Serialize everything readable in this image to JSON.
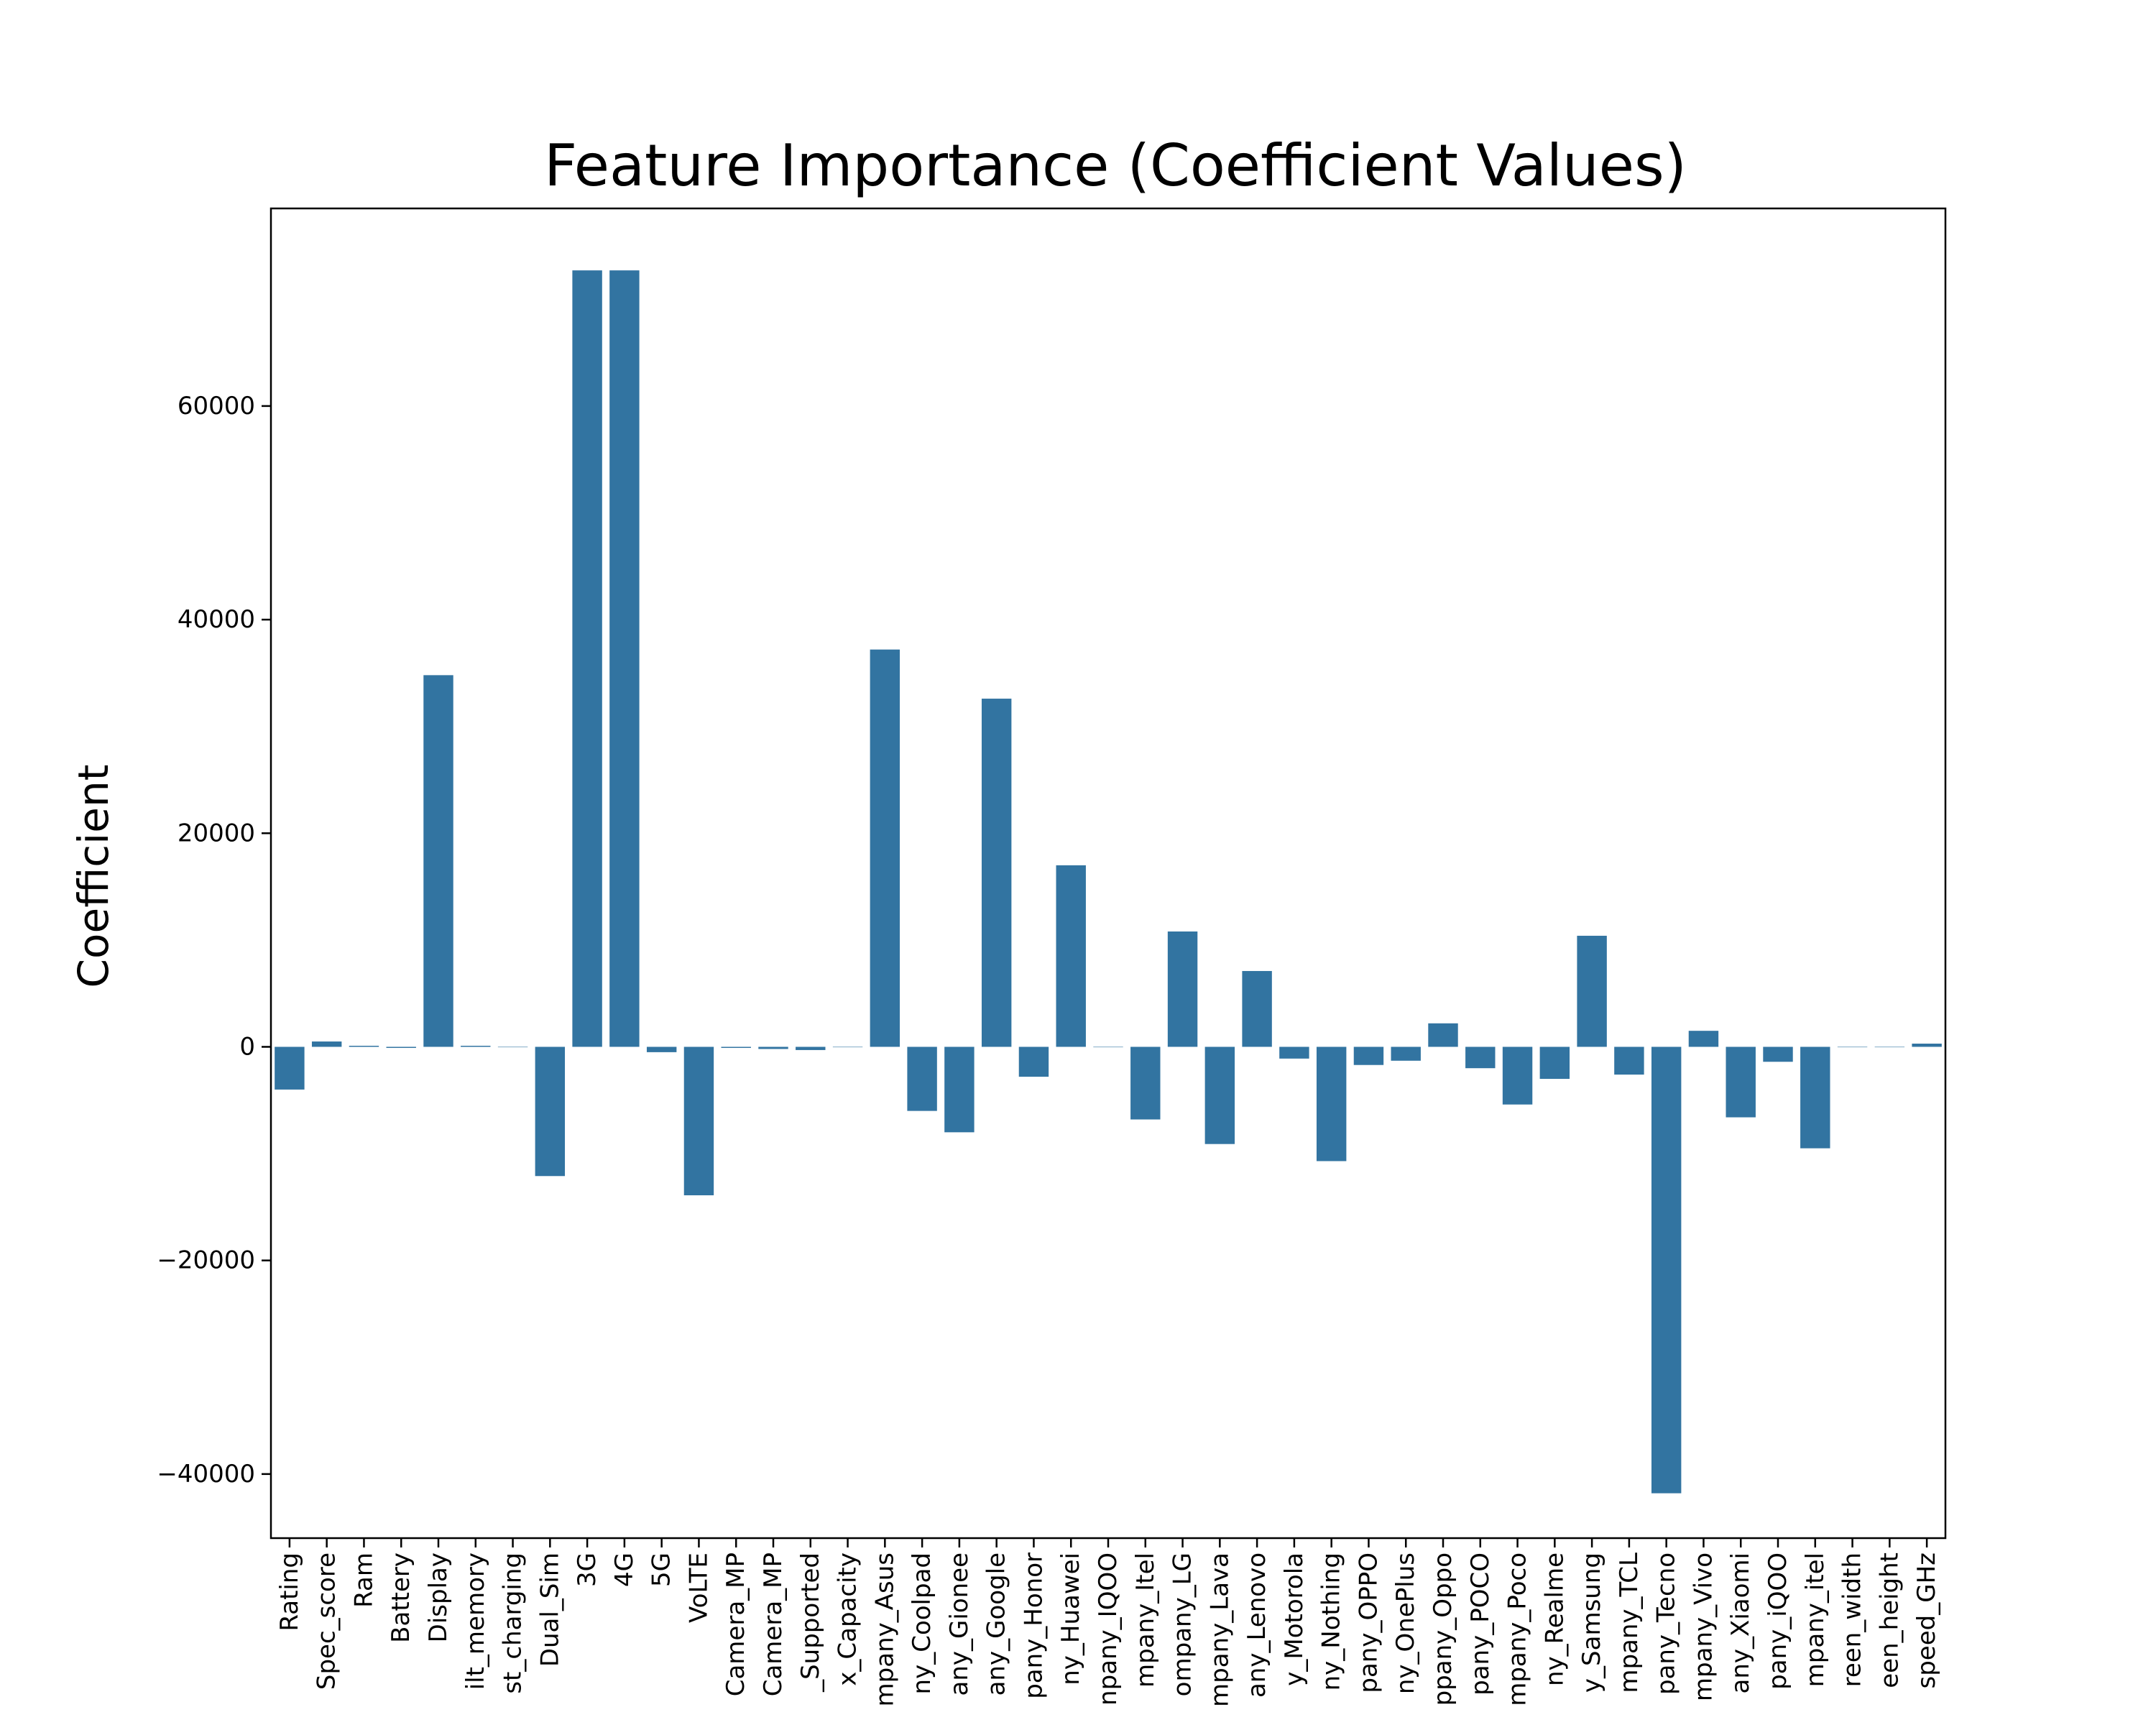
{
  "chart_data": {
    "type": "bar",
    "title": "Feature Importance (Coefficient Values)",
    "xlabel": "",
    "ylabel": "Coefficient",
    "ylim": [
      -46000,
      78500
    ],
    "yticks": [
      -40000,
      -20000,
      0,
      20000,
      40000,
      60000
    ],
    "ytick_labels": [
      "−40000",
      "−20000",
      "0",
      "20000",
      "40000",
      "60000"
    ],
    "grid": false,
    "bar_color": "#3274a1",
    "categories": [
      "Rating",
      "Spec_score",
      "Ram",
      "Battery",
      "Display",
      "ilt_memory",
      "st_charging",
      "Dual_Sim",
      "3G",
      "4G",
      "5G",
      "VoLTE",
      "Camera_MP",
      "Camera_MP",
      "_Supported",
      "x_Capacity",
      "mpany_Asus",
      "ny_Coolpad",
      "any_Gionee",
      "any_Google",
      "pany_Honor",
      "ny_Huawei",
      "npany_IQOO",
      "mpany_Itel",
      "ompany_LG",
      "mpany_Lava",
      "any_Lenovo",
      "y_Motorola",
      "ny_Nothing",
      "pany_OPPO",
      "ny_OnePlus",
      "ppany_Oppo",
      "pany_POCO",
      "mpany_Poco",
      "ny_Realme",
      "y_Samsung",
      "mpany_TCL",
      "pany_Tecno",
      "mpany_Vivo",
      "any_Xiaomi",
      "pany_iQOO",
      "mpany_itel",
      "reen_width",
      "een_height",
      "speed_GHz"
    ],
    "values": [
      -4000,
      500,
      100,
      -100,
      34800,
      100,
      0,
      -12100,
      72700,
      72700,
      -500,
      -13900,
      -100,
      -200,
      -300,
      0,
      37200,
      -6000,
      -8000,
      32600,
      -2800,
      17000,
      0,
      -6800,
      10800,
      -9100,
      7100,
      -1100,
      -10700,
      -1700,
      -1300,
      2200,
      -2000,
      -5400,
      -3000,
      10400,
      -2600,
      -41800,
      1500,
      -6600,
      -1400,
      -9500,
      0,
      0,
      300
    ]
  }
}
